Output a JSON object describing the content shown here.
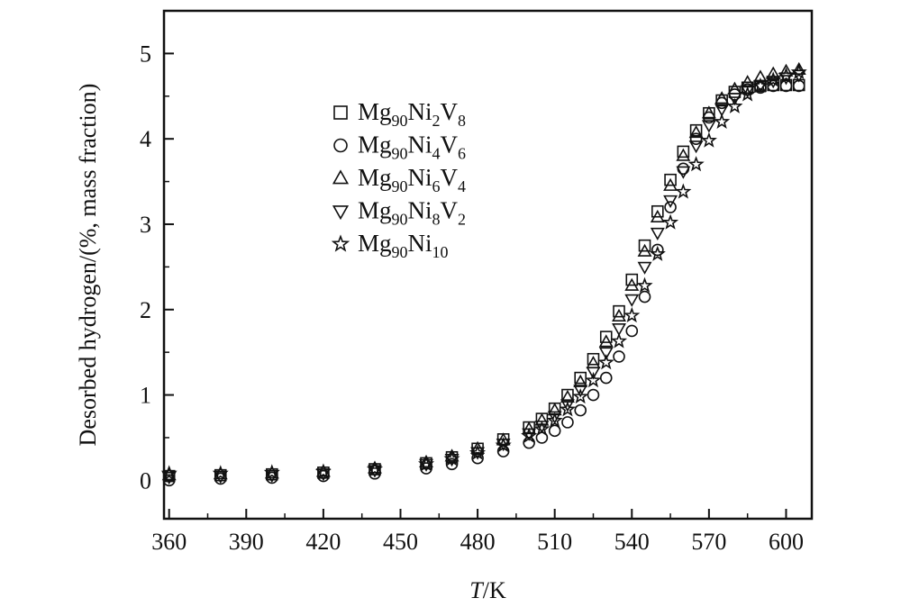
{
  "chart_data": {
    "type": "scatter",
    "title": "",
    "xlabel": "T/K",
    "xlabel_italic": "T",
    "xlabel_unit": "/K",
    "ylabel": "Desorbed hydrogen/(%, mass fraction)",
    "xlim": [
      358,
      610
    ],
    "ylim": [
      -0.45,
      5.5
    ],
    "x_ticks": [
      360,
      390,
      420,
      450,
      480,
      510,
      540,
      570,
      600
    ],
    "y_ticks": [
      0,
      1,
      2,
      3,
      4,
      5
    ],
    "grid": false,
    "legend_position": "upper-left-inside",
    "series": [
      {
        "name": "Mg90Ni2V8",
        "label_parts": [
          [
            "Mg",
            ""
          ],
          [
            "90",
            "sub"
          ],
          [
            "Ni",
            ""
          ],
          [
            "2",
            "sub"
          ],
          [
            "V",
            ""
          ],
          [
            "8",
            "sub"
          ]
        ],
        "marker": "square",
        "x": [
          360,
          380,
          400,
          420,
          440,
          460,
          470,
          480,
          490,
          500,
          505,
          510,
          515,
          520,
          525,
          530,
          535,
          540,
          545,
          550,
          555,
          560,
          565,
          570,
          575,
          580,
          585,
          590,
          595,
          600,
          605
        ],
        "y": [
          0.05,
          0.06,
          0.07,
          0.09,
          0.13,
          0.2,
          0.27,
          0.37,
          0.48,
          0.62,
          0.72,
          0.84,
          1.0,
          1.2,
          1.42,
          1.68,
          1.98,
          2.35,
          2.75,
          3.15,
          3.52,
          3.85,
          4.1,
          4.3,
          4.45,
          4.55,
          4.6,
          4.62,
          4.63,
          4.63,
          4.63
        ]
      },
      {
        "name": "Mg90Ni4V6",
        "label_parts": [
          [
            "Mg",
            ""
          ],
          [
            "90",
            "sub"
          ],
          [
            "Ni",
            ""
          ],
          [
            "4",
            "sub"
          ],
          [
            "V",
            ""
          ],
          [
            "6",
            "sub"
          ]
        ],
        "marker": "circle",
        "x": [
          360,
          380,
          400,
          420,
          440,
          460,
          470,
          480,
          490,
          500,
          505,
          510,
          515,
          520,
          525,
          530,
          535,
          540,
          545,
          550,
          555,
          560,
          565,
          570,
          575,
          580,
          585,
          590,
          595,
          600,
          605
        ],
        "y": [
          0.0,
          0.02,
          0.03,
          0.05,
          0.08,
          0.14,
          0.19,
          0.26,
          0.34,
          0.44,
          0.5,
          0.58,
          0.68,
          0.82,
          1.0,
          1.2,
          1.45,
          1.75,
          2.15,
          2.7,
          3.2,
          3.65,
          4.0,
          4.25,
          4.42,
          4.52,
          4.58,
          4.6,
          4.62,
          4.62,
          4.62
        ]
      },
      {
        "name": "Mg90Ni6V4",
        "label_parts": [
          [
            "Mg",
            ""
          ],
          [
            "90",
            "sub"
          ],
          [
            "Ni",
            ""
          ],
          [
            "6",
            "sub"
          ],
          [
            "V",
            ""
          ],
          [
            "4",
            "sub"
          ]
        ],
        "marker": "triangle-up",
        "x": [
          360,
          380,
          400,
          420,
          440,
          460,
          470,
          480,
          490,
          500,
          505,
          510,
          515,
          520,
          525,
          530,
          535,
          540,
          545,
          550,
          555,
          560,
          565,
          570,
          575,
          580,
          585,
          590,
          595,
          600,
          605
        ],
        "y": [
          0.06,
          0.07,
          0.08,
          0.1,
          0.14,
          0.21,
          0.28,
          0.37,
          0.47,
          0.6,
          0.7,
          0.82,
          0.97,
          1.15,
          1.37,
          1.62,
          1.92,
          2.28,
          2.68,
          3.08,
          3.45,
          3.8,
          4.07,
          4.3,
          4.47,
          4.58,
          4.66,
          4.72,
          4.76,
          4.79,
          4.81
        ]
      },
      {
        "name": "Mg90Ni8V2",
        "label_parts": [
          [
            "Mg",
            ""
          ],
          [
            "90",
            "sub"
          ],
          [
            "Ni",
            ""
          ],
          [
            "8",
            "sub"
          ],
          [
            "V",
            ""
          ],
          [
            "2",
            "sub"
          ]
        ],
        "marker": "triangle-down",
        "x": [
          360,
          380,
          400,
          420,
          440,
          460,
          470,
          480,
          490,
          500,
          505,
          510,
          515,
          520,
          525,
          530,
          535,
          540,
          545,
          550,
          555,
          560,
          565,
          570,
          575,
          580,
          585,
          590,
          595,
          600,
          605
        ],
        "y": [
          0.04,
          0.05,
          0.06,
          0.08,
          0.12,
          0.19,
          0.25,
          0.33,
          0.43,
          0.55,
          0.64,
          0.75,
          0.89,
          1.06,
          1.27,
          1.5,
          1.78,
          2.12,
          2.5,
          2.9,
          3.28,
          3.62,
          3.92,
          4.16,
          4.35,
          4.48,
          4.57,
          4.63,
          4.68,
          4.72,
          4.75
        ]
      },
      {
        "name": "Mg90Ni10",
        "label_parts": [
          [
            "Mg",
            ""
          ],
          [
            "90",
            "sub"
          ],
          [
            "Ni",
            ""
          ],
          [
            "10",
            "sub"
          ]
        ],
        "marker": "star",
        "x": [
          360,
          380,
          400,
          420,
          440,
          460,
          470,
          480,
          490,
          500,
          505,
          510,
          515,
          520,
          525,
          530,
          535,
          540,
          545,
          550,
          555,
          560,
          565,
          570,
          575,
          580,
          585,
          590,
          595,
          600,
          605
        ],
        "y": [
          0.08,
          0.08,
          0.09,
          0.1,
          0.13,
          0.19,
          0.25,
          0.32,
          0.41,
          0.52,
          0.6,
          0.7,
          0.83,
          0.98,
          1.17,
          1.38,
          1.63,
          1.93,
          2.28,
          2.65,
          3.02,
          3.38,
          3.7,
          3.98,
          4.2,
          4.38,
          4.52,
          4.62,
          4.69,
          4.74,
          4.78
        ]
      }
    ]
  }
}
